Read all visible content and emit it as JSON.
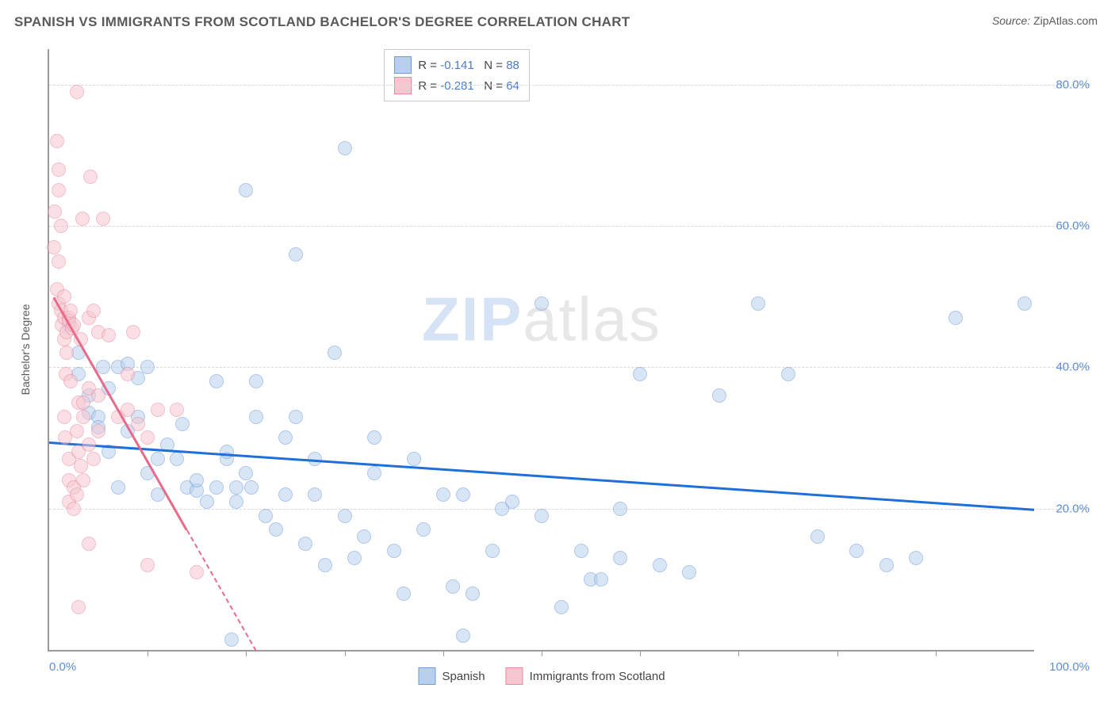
{
  "title": "SPANISH VS IMMIGRANTS FROM SCOTLAND BACHELOR'S DEGREE CORRELATION CHART",
  "source_label": "Source:",
  "source_value": "ZipAtlas.com",
  "yaxis_title": "Bachelor's Degree",
  "watermark_a": "ZIP",
  "watermark_b": "atlas",
  "chart": {
    "type": "scatter",
    "xlim": [
      0,
      100
    ],
    "ylim": [
      0,
      85
    ],
    "xlabel_min": "0.0%",
    "xlabel_max": "100.0%",
    "yticks": [
      20,
      40,
      60,
      80
    ],
    "ytick_labels": [
      "20.0%",
      "40.0%",
      "60.0%",
      "80.0%"
    ],
    "xticks": [
      10,
      20,
      30,
      40,
      50,
      60,
      70,
      80,
      90
    ],
    "background_color": "#ffffff",
    "grid_color": "#d8d8d8",
    "axis_color": "#9a9a9a",
    "axis_label_color": "#5b8dd6",
    "marker_radius": 9,
    "marker_opacity": 0.55,
    "series": [
      {
        "name": "Spanish",
        "fill": "#b8d0ee",
        "stroke": "#6f9cd6",
        "line_color": "#1e6fd9",
        "R_label": "R = ",
        "R": "-0.141",
        "N_label": "N = ",
        "N": "88",
        "trend": {
          "x1": 0,
          "y1": 29.5,
          "x2": 100,
          "y2": 20,
          "dash_from_x": null
        },
        "points": [
          [
            2,
            46
          ],
          [
            3,
            42
          ],
          [
            3,
            39
          ],
          [
            4,
            36
          ],
          [
            4,
            33.5
          ],
          [
            5,
            33
          ],
          [
            5,
            31.5
          ],
          [
            5.5,
            40
          ],
          [
            6,
            37
          ],
          [
            6,
            28
          ],
          [
            7,
            23
          ],
          [
            7,
            40
          ],
          [
            8,
            40.5
          ],
          [
            8,
            31
          ],
          [
            9,
            33
          ],
          [
            9,
            38.5
          ],
          [
            10,
            40
          ],
          [
            10,
            25
          ],
          [
            11,
            22
          ],
          [
            11,
            27
          ],
          [
            12,
            29
          ],
          [
            13,
            27
          ],
          [
            13.5,
            32
          ],
          [
            14,
            23
          ],
          [
            15,
            22.5
          ],
          [
            15,
            24
          ],
          [
            16,
            21
          ],
          [
            17,
            38
          ],
          [
            17,
            23
          ],
          [
            18,
            27
          ],
          [
            18,
            28
          ],
          [
            18.5,
            1.5
          ],
          [
            19,
            23
          ],
          [
            19,
            21
          ],
          [
            20,
            65
          ],
          [
            20,
            25
          ],
          [
            20.5,
            23
          ],
          [
            21,
            33
          ],
          [
            21,
            38
          ],
          [
            22,
            19
          ],
          [
            23,
            17
          ],
          [
            24,
            22
          ],
          [
            24,
            30
          ],
          [
            25,
            33
          ],
          [
            25,
            56
          ],
          [
            26,
            15
          ],
          [
            27,
            27
          ],
          [
            27,
            22
          ],
          [
            28,
            12
          ],
          [
            29,
            42
          ],
          [
            30,
            19
          ],
          [
            30,
            71
          ],
          [
            31,
            13
          ],
          [
            32,
            16
          ],
          [
            33,
            25
          ],
          [
            33,
            30
          ],
          [
            35,
            14
          ],
          [
            36,
            8
          ],
          [
            37,
            27
          ],
          [
            38,
            17
          ],
          [
            40,
            22
          ],
          [
            41,
            9
          ],
          [
            42,
            22
          ],
          [
            42,
            2
          ],
          [
            43,
            8
          ],
          [
            45,
            14
          ],
          [
            46,
            20
          ],
          [
            47,
            21
          ],
          [
            50,
            19
          ],
          [
            50,
            49
          ],
          [
            52,
            6
          ],
          [
            54,
            14
          ],
          [
            55,
            10
          ],
          [
            56,
            10
          ],
          [
            58,
            13
          ],
          [
            58,
            20
          ],
          [
            60,
            39
          ],
          [
            62,
            12
          ],
          [
            65,
            11
          ],
          [
            68,
            36
          ],
          [
            72,
            49
          ],
          [
            75,
            39
          ],
          [
            78,
            16
          ],
          [
            82,
            14
          ],
          [
            85,
            12
          ],
          [
            88,
            13
          ],
          [
            92,
            47
          ],
          [
            99,
            49
          ]
        ]
      },
      {
        "name": "Immigrants from Scotland",
        "fill": "#f6c7d1",
        "stroke": "#e88aa0",
        "line_color": "#e86b8a",
        "R_label": "R = ",
        "R": "-0.281",
        "N_label": "N = ",
        "N": "64",
        "trend": {
          "x1": 0.5,
          "y1": 50,
          "x2": 21,
          "y2": 0,
          "dash_from_x": 14
        },
        "points": [
          [
            0.5,
            57
          ],
          [
            0.6,
            62
          ],
          [
            0.8,
            51
          ],
          [
            0.8,
            72
          ],
          [
            1,
            68
          ],
          [
            1,
            65
          ],
          [
            1,
            55
          ],
          [
            1,
            49
          ],
          [
            1.2,
            48
          ],
          [
            1.2,
            60
          ],
          [
            1.3,
            46
          ],
          [
            1.5,
            47
          ],
          [
            1.5,
            44
          ],
          [
            1.5,
            50
          ],
          [
            1.5,
            33
          ],
          [
            1.6,
            30
          ],
          [
            1.7,
            39
          ],
          [
            1.8,
            45
          ],
          [
            1.8,
            42
          ],
          [
            2,
            47
          ],
          [
            2,
            46.5
          ],
          [
            2,
            27
          ],
          [
            2,
            24
          ],
          [
            2,
            21
          ],
          [
            2.2,
            48
          ],
          [
            2.2,
            38
          ],
          [
            2.3,
            45.5
          ],
          [
            2.5,
            46
          ],
          [
            2.5,
            23
          ],
          [
            2.5,
            20
          ],
          [
            2.8,
            22
          ],
          [
            2.8,
            31
          ],
          [
            2.8,
            79
          ],
          [
            3,
            35
          ],
          [
            3,
            28
          ],
          [
            3,
            6
          ],
          [
            3.2,
            44
          ],
          [
            3.2,
            26
          ],
          [
            3.4,
            61
          ],
          [
            3.5,
            24
          ],
          [
            3.5,
            35
          ],
          [
            3.5,
            33
          ],
          [
            4,
            47
          ],
          [
            4,
            37
          ],
          [
            4,
            29
          ],
          [
            4,
            15
          ],
          [
            4.2,
            67
          ],
          [
            4.5,
            48
          ],
          [
            4.5,
            27
          ],
          [
            5,
            45
          ],
          [
            5,
            36
          ],
          [
            5,
            31
          ],
          [
            5.5,
            61
          ],
          [
            6,
            44.5
          ],
          [
            7,
            33
          ],
          [
            8,
            39
          ],
          [
            8,
            34
          ],
          [
            8.5,
            45
          ],
          [
            9,
            32
          ],
          [
            10,
            30
          ],
          [
            10,
            12
          ],
          [
            11,
            34
          ],
          [
            13,
            34
          ],
          [
            15,
            11
          ]
        ]
      }
    ],
    "legend_box": {
      "left_pct": 34,
      "top_pct": 0
    },
    "bottom_legend": {
      "items": [
        {
          "label": "Spanish",
          "fill": "#b8d0ee",
          "stroke": "#6f9cd6"
        },
        {
          "label": "Immigrants from Scotland",
          "fill": "#f6c7d1",
          "stroke": "#e88aa0"
        }
      ]
    }
  }
}
